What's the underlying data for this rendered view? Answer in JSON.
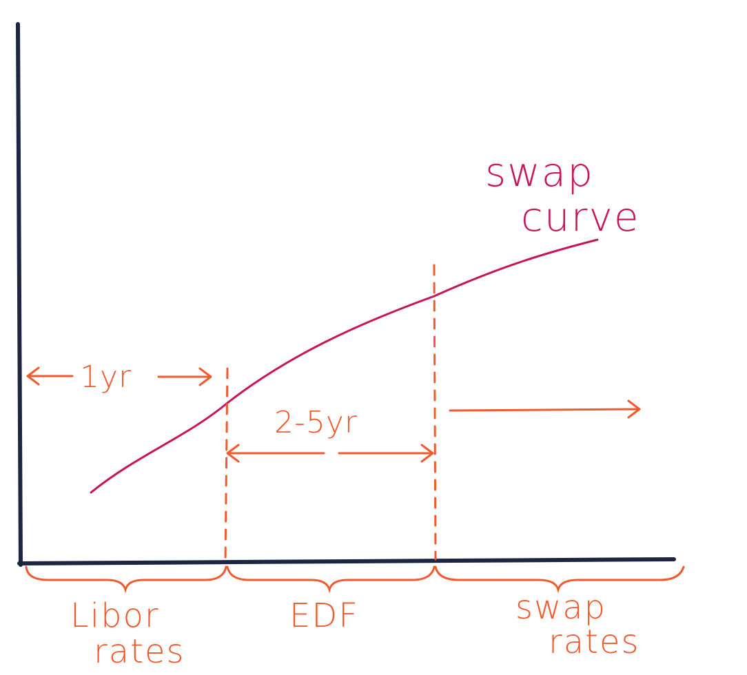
{
  "colors": {
    "axis": "#1c2541",
    "curve": "#c8155a",
    "annotation": "#f05a2e",
    "background": "#ffffff"
  },
  "curve": {
    "label_line1": "swap",
    "label_line2": "curve"
  },
  "periods": {
    "one_year": "1yr",
    "two_to_five": "2-5yr"
  },
  "segments": {
    "libor_line1": "Libor",
    "libor_line2": "rates",
    "edf": "EDF",
    "swap_line1": "swap",
    "swap_line2": "rates"
  }
}
